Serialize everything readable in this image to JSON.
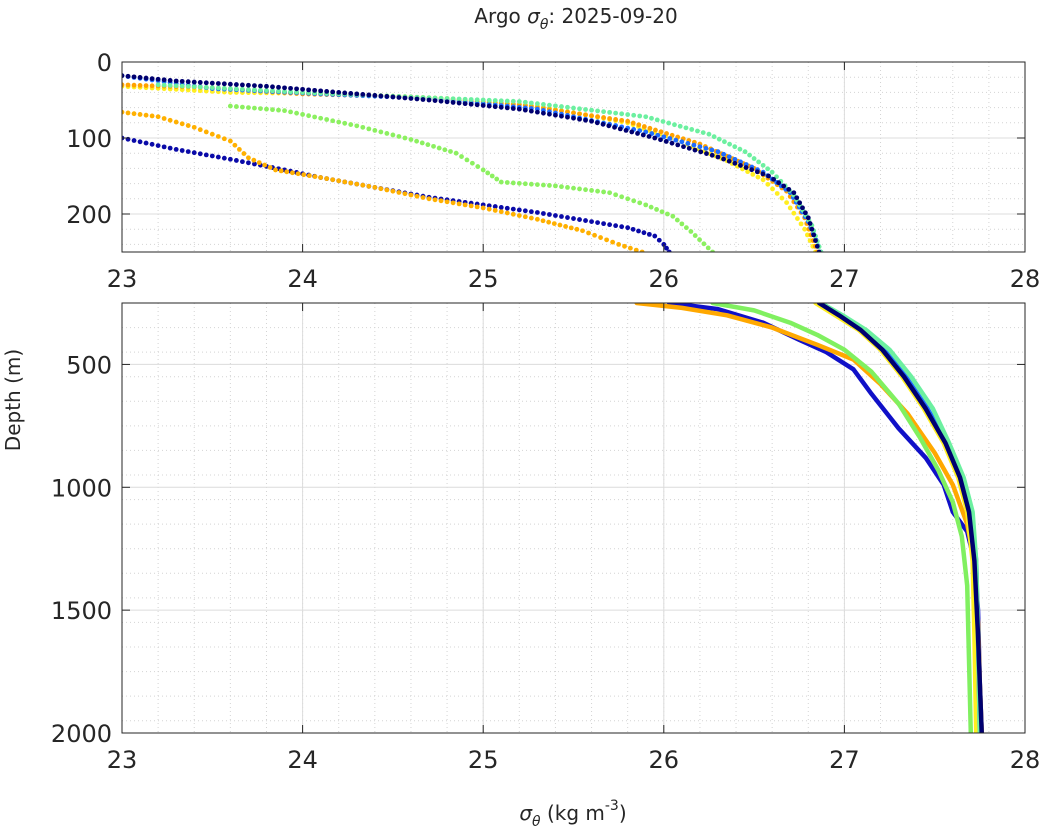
{
  "chart_data": [
    {
      "type": "scatter",
      "panel": "upper",
      "title_prefix": "Argo",
      "title_symbol": "σ",
      "title_subscript": "θ",
      "title_suffix": ": 2025-09-20",
      "xlim": [
        23,
        28
      ],
      "ylim": [
        0,
        250
      ],
      "y_reversed": true,
      "xticks": [
        "23",
        "24",
        "25",
        "26",
        "27",
        "28"
      ],
      "yticks": [
        "0",
        "100",
        "200"
      ],
      "grid": true,
      "series": [
        {
          "color": "#0a0aa8",
          "points": [
            [
              23.0,
              100
            ],
            [
              23.3,
              115
            ],
            [
              23.6,
              128
            ],
            [
              23.9,
              142
            ],
            [
              24.1,
              152
            ],
            [
              24.4,
              165
            ],
            [
              24.7,
              178
            ],
            [
              25.0,
              188
            ],
            [
              25.3,
              198
            ],
            [
              25.6,
              210
            ],
            [
              25.8,
              218
            ],
            [
              25.95,
              229
            ],
            [
              26.0,
              240
            ],
            [
              26.03,
              250
            ]
          ]
        },
        {
          "color": "#ffb000",
          "points": [
            [
              23.0,
              66
            ],
            [
              23.2,
              72
            ],
            [
              23.4,
              86
            ],
            [
              23.6,
              104
            ],
            [
              23.7,
              126
            ],
            [
              23.85,
              142
            ],
            [
              24.1,
              152
            ],
            [
              24.4,
              165
            ],
            [
              24.7,
              180
            ],
            [
              25.0,
              192
            ],
            [
              25.3,
              207
            ],
            [
              25.55,
              222
            ],
            [
              25.75,
              240
            ],
            [
              25.88,
              250
            ]
          ]
        },
        {
          "color": "#8cf060",
          "points": [
            [
              23.6,
              58
            ],
            [
              23.9,
              64
            ],
            [
              24.1,
              74
            ],
            [
              24.3,
              84
            ],
            [
              24.6,
              102
            ],
            [
              24.85,
              120
            ],
            [
              25.0,
              142
            ],
            [
              25.1,
              158
            ],
            [
              25.4,
              163
            ],
            [
              25.7,
              172
            ],
            [
              25.9,
              188
            ],
            [
              26.05,
              203
            ],
            [
              26.15,
              223
            ],
            [
              26.27,
              250
            ]
          ]
        },
        {
          "color": "#ffee20",
          "points": [
            [
              23.0,
              32
            ],
            [
              23.6,
              40
            ],
            [
              24.2,
              42
            ],
            [
              24.8,
              48
            ],
            [
              25.3,
              58
            ],
            [
              25.8,
              80
            ],
            [
              26.1,
              105
            ],
            [
              26.35,
              130
            ],
            [
              26.55,
              155
            ],
            [
              26.68,
              185
            ],
            [
              26.78,
              220
            ],
            [
              26.84,
              250
            ]
          ]
        },
        {
          "color": "#ffa200",
          "points": [
            [
              23.0,
              30
            ],
            [
              23.5,
              34
            ],
            [
              24.0,
              42
            ],
            [
              24.6,
              46
            ],
            [
              25.2,
              56
            ],
            [
              25.8,
              78
            ],
            [
              26.2,
              108
            ],
            [
              26.5,
              140
            ],
            [
              26.68,
              170
            ],
            [
              26.78,
              205
            ],
            [
              26.85,
              250
            ]
          ]
        },
        {
          "color": "#1e6cff",
          "points": [
            [
              23.0,
              18
            ],
            [
              23.5,
              35
            ],
            [
              24.1,
              42
            ],
            [
              24.7,
              48
            ],
            [
              25.3,
              62
            ],
            [
              25.9,
              92
            ],
            [
              26.3,
              118
            ],
            [
              26.55,
              145
            ],
            [
              26.7,
              172
            ],
            [
              26.8,
              210
            ],
            [
              26.87,
              250
            ]
          ]
        },
        {
          "color": "#6cf0a0",
          "points": [
            [
              23.2,
              30
            ],
            [
              24.0,
              40
            ],
            [
              25.2,
              52
            ],
            [
              25.9,
              72
            ],
            [
              26.25,
              95
            ],
            [
              26.45,
              118
            ],
            [
              26.6,
              145
            ],
            [
              26.72,
              175
            ],
            [
              26.82,
              215
            ],
            [
              26.87,
              250
            ]
          ]
        },
        {
          "color": "#000070",
          "points": [
            [
              23.0,
              18
            ],
            [
              23.3,
              25
            ],
            [
              23.8,
              32
            ],
            [
              24.2,
              40
            ],
            [
              24.7,
              50
            ],
            [
              25.2,
              62
            ],
            [
              25.6,
              78
            ],
            [
              25.95,
              100
            ],
            [
              26.3,
              125
            ],
            [
              26.58,
              150
            ],
            [
              26.72,
              172
            ],
            [
              26.8,
              205
            ],
            [
              26.86,
              250
            ]
          ]
        }
      ]
    },
    {
      "type": "line",
      "panel": "lower",
      "xlim": [
        23,
        28
      ],
      "ylim": [
        250,
        2000
      ],
      "y_reversed": true,
      "xticks": [
        "23",
        "24",
        "25",
        "26",
        "27",
        "28"
      ],
      "yticks": [
        "500",
        "1000",
        "1500",
        "2000"
      ],
      "xlabel_symbol": "σ",
      "xlabel_subscript": "θ",
      "xlabel_text": " (kg m",
      "xlabel_superscript": "-3",
      "xlabel_close": ")",
      "ylabel": "Depth (m)",
      "grid": true,
      "series": [
        {
          "color": "#1010c8",
          "points": [
            [
              26.03,
              250
            ],
            [
              26.3,
              275
            ],
            [
              26.55,
              330
            ],
            [
              26.75,
              400
            ],
            [
              26.9,
              450
            ],
            [
              27.05,
              520
            ],
            [
              27.15,
              620
            ],
            [
              27.3,
              760
            ],
            [
              27.45,
              880
            ],
            [
              27.55,
              990
            ],
            [
              27.6,
              1100
            ],
            [
              27.68,
              1180
            ],
            [
              27.72,
              1300
            ],
            [
              27.74,
              1500
            ],
            [
              27.75,
              1800
            ],
            [
              27.76,
              2000
            ]
          ]
        },
        {
          "color": "#ffa800",
          "points": [
            [
              25.85,
              250
            ],
            [
              26.1,
              270
            ],
            [
              26.35,
              300
            ],
            [
              26.6,
              350
            ],
            [
              26.85,
              420
            ],
            [
              27.05,
              480
            ],
            [
              27.2,
              580
            ],
            [
              27.35,
              700
            ],
            [
              27.5,
              860
            ],
            [
              27.6,
              990
            ],
            [
              27.68,
              1150
            ],
            [
              27.72,
              1300
            ],
            [
              27.74,
              1550
            ],
            [
              27.75,
              1800
            ],
            [
              27.76,
              2000
            ]
          ]
        },
        {
          "color": "#80f060",
          "points": [
            [
              26.27,
              250
            ],
            [
              26.5,
              280
            ],
            [
              26.7,
              330
            ],
            [
              26.85,
              380
            ],
            [
              27.0,
              440
            ],
            [
              27.15,
              530
            ],
            [
              27.3,
              660
            ],
            [
              27.42,
              800
            ],
            [
              27.52,
              930
            ],
            [
              27.6,
              1060
            ],
            [
              27.65,
              1200
            ],
            [
              27.68,
              1400
            ],
            [
              27.69,
              1700
            ],
            [
              27.7,
              2000
            ]
          ]
        },
        {
          "color": "#ffee20",
          "points": [
            [
              26.84,
              250
            ],
            [
              26.95,
              300
            ],
            [
              27.08,
              360
            ],
            [
              27.2,
              440
            ],
            [
              27.32,
              550
            ],
            [
              27.44,
              680
            ],
            [
              27.55,
              820
            ],
            [
              27.63,
              960
            ],
            [
              27.68,
              1100
            ],
            [
              27.71,
              1300
            ],
            [
              27.72,
              1600
            ],
            [
              27.73,
              2000
            ]
          ]
        },
        {
          "color": "#1e6cff",
          "points": [
            [
              26.87,
              250
            ],
            [
              26.98,
              300
            ],
            [
              27.1,
              360
            ],
            [
              27.22,
              440
            ],
            [
              27.34,
              550
            ],
            [
              27.46,
              680
            ],
            [
              27.57,
              820
            ],
            [
              27.65,
              960
            ],
            [
              27.7,
              1100
            ],
            [
              27.73,
              1300
            ],
            [
              27.74,
              1600
            ],
            [
              27.75,
              2000
            ]
          ]
        },
        {
          "color": "#6cf0a0",
          "points": [
            [
              26.87,
              250
            ],
            [
              26.99,
              300
            ],
            [
              27.12,
              360
            ],
            [
              27.25,
              440
            ],
            [
              27.37,
              550
            ],
            [
              27.49,
              680
            ],
            [
              27.58,
              820
            ],
            [
              27.66,
              960
            ],
            [
              27.71,
              1100
            ],
            [
              27.73,
              1300
            ],
            [
              27.74,
              1600
            ],
            [
              27.75,
              2000
            ]
          ]
        },
        {
          "color": "#000070",
          "points": [
            [
              26.86,
              250
            ],
            [
              26.97,
              300
            ],
            [
              27.09,
              360
            ],
            [
              27.21,
              440
            ],
            [
              27.33,
              550
            ],
            [
              27.45,
              680
            ],
            [
              27.56,
              820
            ],
            [
              27.64,
              960
            ],
            [
              27.69,
              1100
            ],
            [
              27.72,
              1300
            ],
            [
              27.74,
              1600
            ],
            [
              27.76,
              2000
            ]
          ]
        }
      ]
    }
  ]
}
